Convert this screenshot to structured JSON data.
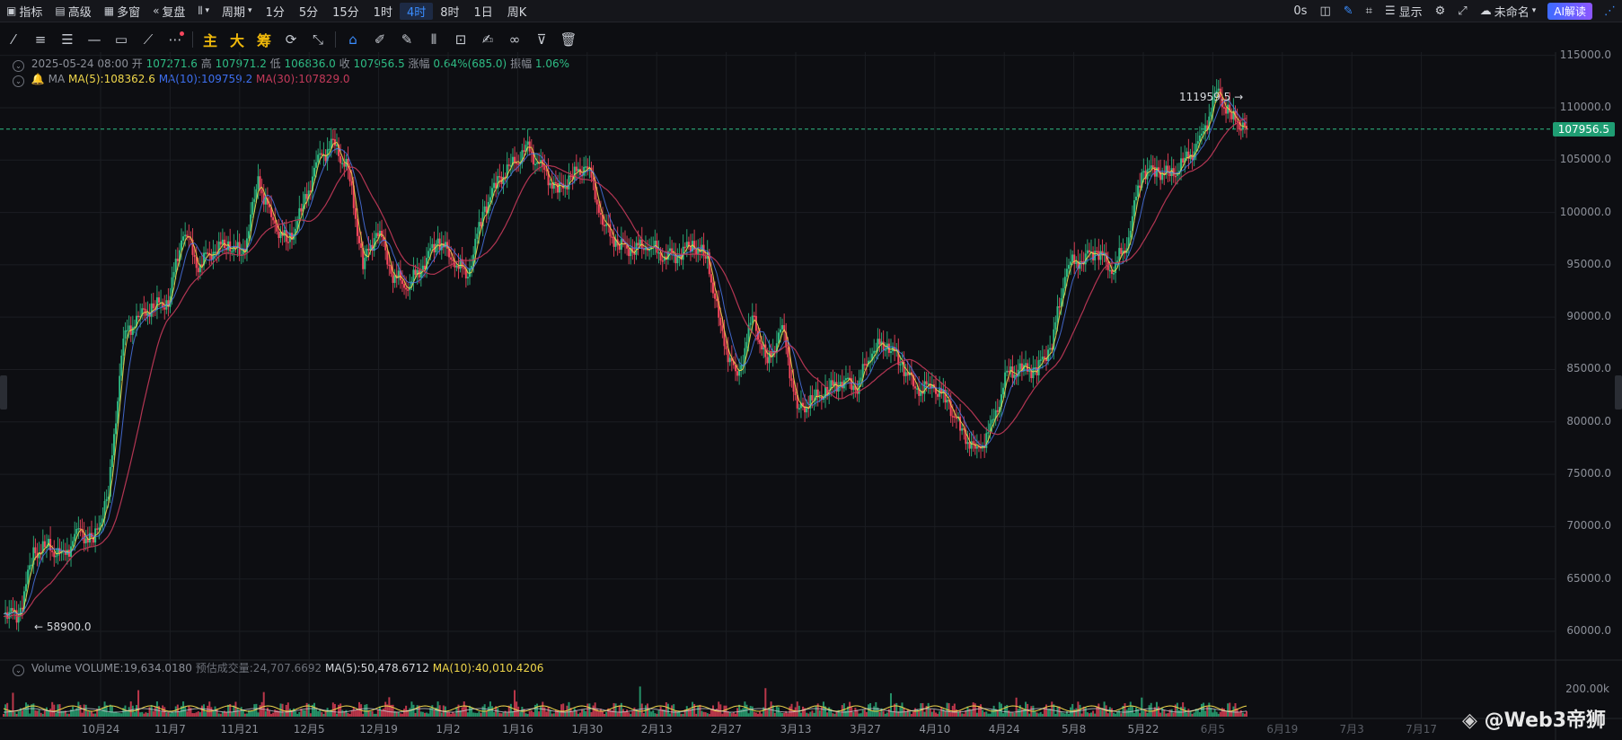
{
  "topbar": {
    "items": [
      {
        "icon": "chart-icon",
        "label": "指标"
      },
      {
        "icon": "calendar-icon",
        "label": "高级"
      },
      {
        "icon": "grid-icon",
        "label": "多窗"
      },
      {
        "icon": "replay-icon",
        "label": "复盘"
      },
      {
        "icon": "candle-icon",
        "label": ""
      },
      {
        "icon": "",
        "label": "周期"
      }
    ],
    "intervals": [
      "1分",
      "5分",
      "15分",
      "1时",
      "4时",
      "8时",
      "1日",
      "周K"
    ],
    "active_interval": "4时",
    "right": {
      "countdown": "0s",
      "display": "显示",
      "layout_name": "未命名",
      "ai": "AI解读"
    }
  },
  "info": {
    "date": "2025-05-24 08:00",
    "open_label": "开",
    "open": "107271.6",
    "high_label": "高",
    "high": "107971.2",
    "low_label": "低",
    "low": "106836.0",
    "close_label": "收",
    "close": "107956.5",
    "change_label": "涨幅",
    "change": "0.64%(685.0)",
    "amp_label": "振幅",
    "amp": "1.06%"
  },
  "ma": {
    "label": "MA",
    "ma5": "MA(5):108362.6",
    "ma10": "MA(10):109759.2",
    "ma30": "MA(30):107829.0"
  },
  "volume": {
    "label": "Volume",
    "vol": "VOLUME:19,634.0180",
    "est": "预估成交量:24,707.6692",
    "ma5": "MA(5):50,478.6712",
    "ma10": "MA(10):40,010.4206",
    "axis": "200.00k"
  },
  "markers": {
    "high": "111959.5",
    "low": "58900.0",
    "last": "107956.5"
  },
  "watermark": "@Web3帝狮",
  "colors": {
    "up": "#2ebd85",
    "down": "#f6465d",
    "ma5": "#f0d74b",
    "ma10": "#3d6ff0",
    "ma30": "#c43a5a",
    "accent": "#3a8dff"
  },
  "chart_data": {
    "type": "line",
    "title": "",
    "y_ticks": [
      "115000.0",
      "110000.0",
      "105000.0",
      "100000.0",
      "95000.0",
      "90000.0",
      "85000.0",
      "80000.0",
      "75000.0",
      "70000.0",
      "65000.0",
      "60000.0"
    ],
    "ylim": [
      57000,
      116000
    ],
    "x_ticks": [
      "10月24",
      "11月7",
      "11月21",
      "12月5",
      "12月19",
      "1月2",
      "1月16",
      "1月30",
      "2月13",
      "2月27",
      "3月13",
      "3月27",
      "4月10",
      "4月24",
      "5月8",
      "5月22",
      "6月5",
      "6月19",
      "7月3",
      "7月17"
    ],
    "x_future": [
      "6月5",
      "6月19",
      "7月3",
      "7月17"
    ],
    "series": [
      {
        "x": [
          "10月10",
          "10月15",
          "10月20",
          "10月24",
          "10月28",
          "11月1",
          "11月4",
          "11月7",
          "11月10",
          "11月12",
          "11月15",
          "11月18",
          "11月21",
          "11月23",
          "11月26",
          "11月29",
          "12月2",
          "12月5",
          "12月8",
          "12月10",
          "12月13",
          "12月16",
          "12月17",
          "12月19",
          "12月21",
          "12月24",
          "12月27",
          "12月30",
          "1月2",
          "1月5",
          "1月8",
          "1月10",
          "1月13",
          "1月16",
          "1月18",
          "1月20",
          "1月22",
          "1月25",
          "1月28",
          "1月30",
          "2月2",
          "2月5",
          "2月8",
          "2月11",
          "2月13",
          "2月16",
          "2月19",
          "2月22",
          "2月25",
          "2月27",
          "3月1",
          "3月3",
          "3月5",
          "3月8",
          "3月11",
          "3月13",
          "3月16",
          "3月19",
          "3月22",
          "3月25",
          "3月27",
          "3月30",
          "4月2",
          "4月5",
          "4月7",
          "4月9",
          "4月10",
          "4月13",
          "4月16",
          "4月20",
          "4月24",
          "4月27",
          "4月30",
          "5月3",
          "5月6",
          "5月8",
          "5月11",
          "5月14",
          "5月17",
          "5月20",
          "5月21",
          "5月22",
          "5月23",
          "5月24"
        ],
        "values": [
          62000,
          61500,
          67500,
          68000,
          67000,
          69500,
          68500,
          73000,
          88000,
          90000,
          91000,
          91500,
          98500,
          95000,
          96500,
          97000,
          96000,
          103000,
          99000,
          97000,
          100500,
          105000,
          106500,
          104000,
          95000,
          98500,
          94000,
          93000,
          95000,
          97500,
          95500,
          94000,
          100000,
          103000,
          104500,
          106000,
          104000,
          102000,
          103500,
          104500,
          99000,
          97000,
          96500,
          97000,
          96000,
          96000,
          97000,
          95500,
          88000,
          84000,
          90000,
          85500,
          89000,
          81000,
          82000,
          83000,
          84000,
          83500,
          87000,
          87500,
          85500,
          83000,
          83500,
          82000,
          79000,
          77000,
          79500,
          84500,
          85000,
          85000,
          87500,
          95000,
          95500,
          96500,
          94500,
          97000,
          104000,
          104000,
          103500,
          105000,
          107000,
          111500,
          109000,
          107956.5
        ]
      }
    ]
  }
}
